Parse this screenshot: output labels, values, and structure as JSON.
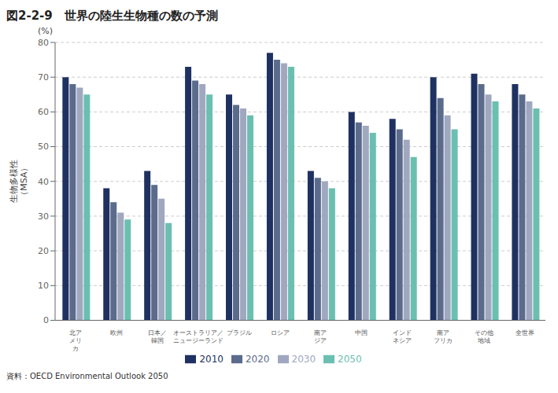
{
  "chart_data": {
    "type": "bar",
    "title": "図2-2-9　世界の陸生生物種の数の予測",
    "ylabel": "生物多様性\n（MSA）",
    "annotations": [
      "(%)",
      "資料：OECD Environmental Outlook 2050"
    ],
    "categories": [
      "北ア\nメリ\nカ",
      "欧州",
      "日本／\n韓国",
      "オーストラリア／\nニュージーランド",
      "ブラジル",
      "ロシア",
      "南ア\nジア",
      "中国",
      "インド\nネシア",
      "南ア\nフリカ",
      "その他\n地域",
      "全世界"
    ],
    "series": [
      {
        "name": "2010",
        "color": "#1e3160",
        "values": [
          70,
          38,
          43,
          73,
          65,
          77,
          43,
          60,
          58,
          70,
          71,
          68
        ]
      },
      {
        "name": "2020",
        "color": "#5b6b8c",
        "values": [
          68,
          34,
          39,
          69,
          62,
          75,
          41,
          57,
          55,
          64,
          68,
          65
        ]
      },
      {
        "name": "2030",
        "color": "#a0a8c0",
        "values": [
          67,
          31,
          35,
          68,
          61,
          74,
          40,
          56,
          52,
          59,
          65,
          63
        ]
      },
      {
        "name": "2050",
        "color": "#6bbfb0",
        "values": [
          65,
          29,
          28,
          65,
          59,
          73,
          38,
          54,
          47,
          55,
          63,
          61
        ]
      }
    ],
    "ylim": [
      0,
      80
    ],
    "yticks": [
      0,
      10,
      20,
      30,
      40,
      50,
      60,
      70,
      80
    ],
    "grid": true,
    "legend": "bottom"
  }
}
